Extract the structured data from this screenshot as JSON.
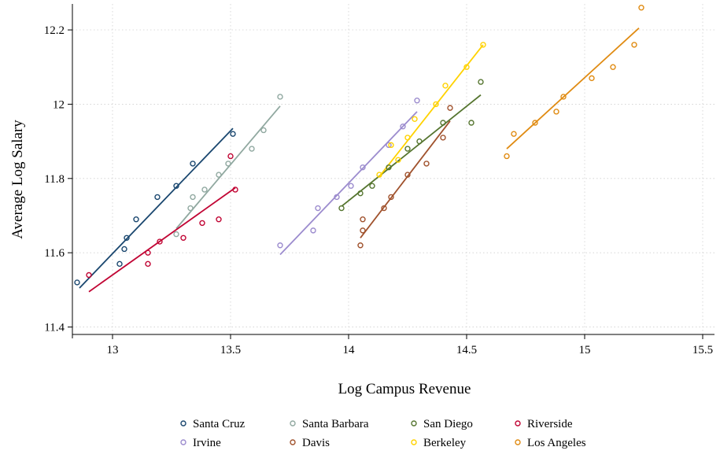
{
  "chart_data": {
    "type": "scatter",
    "xlabel": "Log Campus Revenue",
    "ylabel": "Average Log Salary",
    "xlim": [
      12.83,
      15.55
    ],
    "ylim": [
      11.38,
      12.27
    ],
    "xticks": [
      "13",
      "13.5",
      "14",
      "14.5",
      "15",
      "15.5"
    ],
    "yticks": [
      "11.4",
      "11.6",
      "11.8",
      "12",
      "12.2"
    ],
    "grid": true,
    "legend": "bottom",
    "series": [
      {
        "name": "Santa Cruz",
        "color": "#1a476f",
        "x": [
          12.85,
          13.03,
          13.05,
          13.06,
          13.1,
          13.19,
          13.27,
          13.34,
          13.51
        ],
        "y": [
          11.52,
          11.57,
          11.61,
          11.64,
          11.69,
          11.75,
          11.78,
          11.84,
          11.92
        ],
        "fit": [
          [
            12.86,
            11.505
          ],
          [
            13.51,
            11.935
          ]
        ]
      },
      {
        "name": "Santa Barbara",
        "color": "#90a8a0",
        "x": [
          13.27,
          13.33,
          13.34,
          13.39,
          13.45,
          13.49,
          13.59,
          13.64,
          13.71
        ],
        "y": [
          11.65,
          11.72,
          11.75,
          11.77,
          11.81,
          11.84,
          11.88,
          11.93,
          12.02
        ],
        "fit": [
          [
            13.27,
            11.665
          ],
          [
            13.71,
            11.995
          ]
        ]
      },
      {
        "name": "San Diego",
        "color": "#55752f",
        "x": [
          13.97,
          14.05,
          14.1,
          14.17,
          14.25,
          14.3,
          14.4,
          14.52,
          14.56
        ],
        "y": [
          11.72,
          11.76,
          11.78,
          11.83,
          11.88,
          11.9,
          11.95,
          11.95,
          12.06
        ],
        "fit": [
          [
            13.97,
            11.725
          ],
          [
            14.56,
            12.025
          ]
        ]
      },
      {
        "name": "Riverside",
        "color": "#c10534",
        "x": [
          12.9,
          13.15,
          13.15,
          13.2,
          13.3,
          13.38,
          13.45,
          13.5,
          13.52
        ],
        "y": [
          11.54,
          11.57,
          11.6,
          11.63,
          11.64,
          11.68,
          11.69,
          11.86,
          11.77
        ],
        "fit": [
          [
            12.9,
            11.495
          ],
          [
            13.52,
            11.775
          ]
        ]
      },
      {
        "name": "Irvine",
        "color": "#9c8cce",
        "x": [
          13.71,
          13.85,
          13.87,
          13.95,
          14.01,
          14.06,
          14.17,
          14.23,
          14.29
        ],
        "y": [
          11.62,
          11.66,
          11.72,
          11.75,
          11.78,
          11.83,
          11.89,
          11.94,
          12.01
        ],
        "fit": [
          [
            13.71,
            11.595
          ],
          [
            14.29,
            11.98
          ]
        ]
      },
      {
        "name": "Davis",
        "color": "#a0522d",
        "x": [
          14.05,
          14.06,
          14.06,
          14.15,
          14.18,
          14.25,
          14.33,
          14.4,
          14.43
        ],
        "y": [
          11.62,
          11.66,
          11.69,
          11.72,
          11.75,
          11.81,
          11.84,
          11.91,
          11.99
        ],
        "fit": [
          [
            14.05,
            11.64
          ],
          [
            14.43,
            11.955
          ]
        ]
      },
      {
        "name": "Berkeley",
        "color": "#ffd200",
        "x": [
          14.13,
          14.18,
          14.21,
          14.25,
          14.28,
          14.37,
          14.41,
          14.5,
          14.57
        ],
        "y": [
          11.81,
          11.89,
          11.85,
          11.91,
          11.96,
          12.0,
          12.05,
          12.1,
          12.16
        ],
        "fit": [
          [
            14.13,
            11.805
          ],
          [
            14.57,
            12.16
          ]
        ]
      },
      {
        "name": "Los Angeles",
        "color": "#e08b12",
        "x": [
          14.67,
          14.7,
          14.79,
          14.88,
          14.91,
          15.03,
          15.12,
          15.21,
          15.24
        ],
        "y": [
          11.86,
          11.92,
          11.95,
          11.98,
          12.02,
          12.07,
          12.1,
          12.16,
          12.26
        ],
        "fit": [
          [
            14.67,
            11.88
          ],
          [
            15.23,
            12.205
          ]
        ]
      }
    ]
  }
}
